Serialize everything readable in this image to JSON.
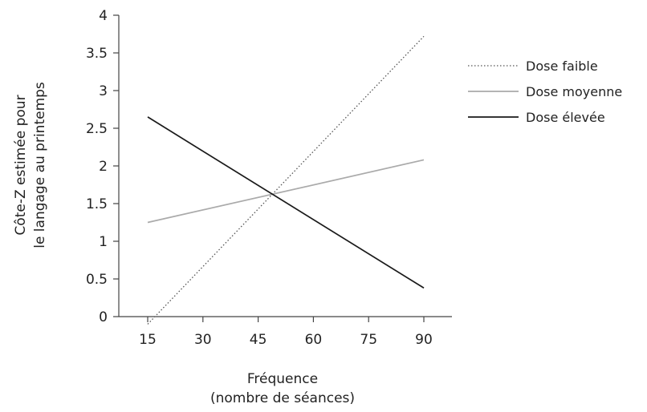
{
  "chart_data": {
    "type": "line",
    "xlabel": [
      "Fréquence",
      "(nombre de séances)"
    ],
    "ylabel": [
      "Côte-Z estimée pour",
      "le langage au printemps"
    ],
    "xlim": [
      10,
      100
    ],
    "ylim": [
      0,
      4
    ],
    "x_ticks": [
      15,
      30,
      45,
      60,
      75,
      90
    ],
    "x_tick_labels": [
      "15",
      "30",
      "45",
      "60",
      "75",
      "90"
    ],
    "y_ticks": [
      0,
      0.5,
      1,
      1.5,
      2,
      2.5,
      3,
      3.5,
      4
    ],
    "y_tick_labels": [
      "0",
      "0.5",
      "1",
      "1.5",
      "2",
      "2.5",
      "3",
      "3.5",
      "4"
    ],
    "grid": false,
    "legend_position": "right",
    "series": [
      {
        "name": "Dose faible",
        "style": "dotted",
        "color": "#555555",
        "x": [
          15,
          90
        ],
        "y": [
          -0.1,
          3.72
        ]
      },
      {
        "name": "Dose moyenne",
        "style": "solid",
        "color": "#aaaaaa",
        "x": [
          15,
          90
        ],
        "y": [
          1.25,
          2.08
        ]
      },
      {
        "name": "Dose élevée",
        "style": "solid",
        "color": "#1a1a1a",
        "x": [
          15,
          90
        ],
        "y": [
          2.65,
          0.38
        ]
      }
    ]
  }
}
